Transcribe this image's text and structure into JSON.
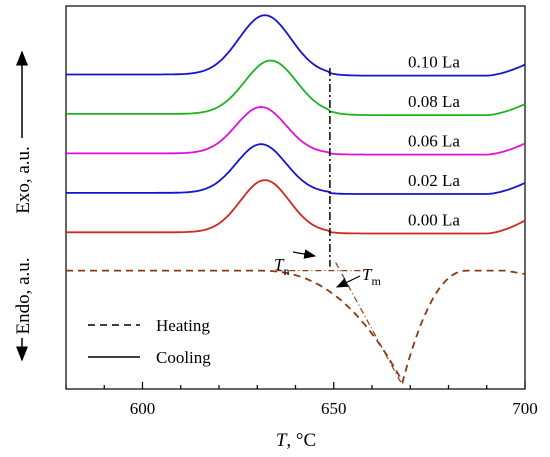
{
  "chart_data": {
    "type": "line",
    "xlabel_italic": "T",
    "xlabel_rest": ", °C",
    "ylabel_exo": "Exo, a.u.",
    "ylabel_endo": "Endo, a.u.",
    "xlim": [
      580,
      700
    ],
    "xticks": [
      {
        "value": 600,
        "label": "600"
      },
      {
        "value": 650,
        "label": "650"
      },
      {
        "value": 700,
        "label": "700"
      }
    ],
    "series": [
      {
        "name": "0.10 La",
        "color": "#1515d0",
        "baseline": 8.9,
        "peak_height": 2.55,
        "peak_x": 632,
        "width": 9.6,
        "tail_slope": 0.012
      },
      {
        "name": "0.08 La",
        "color": "#1fb31f",
        "baseline": 7.2,
        "peak_height": 2.3,
        "peak_x": 633.5,
        "width": 9.6,
        "tail_slope": 0.012
      },
      {
        "name": "0.06 La",
        "color": "#e010d8",
        "baseline": 5.5,
        "peak_height": 2.0,
        "peak_x": 631,
        "width": 9.2,
        "tail_slope": 0.012
      },
      {
        "name": "0.02 La",
        "color": "#1515d0",
        "baseline": 3.8,
        "peak_height": 2.1,
        "peak_x": 631,
        "width": 9.2,
        "tail_slope": 0.012
      },
      {
        "name": "0.00 La",
        "color": "#cc2a22",
        "baseline": 2.1,
        "peak_height": 2.25,
        "peak_x": 632,
        "width": 9.0,
        "tail_slope": 0.014
      }
    ],
    "heating_curve": {
      "color": "#8b3a12",
      "baseline": 0.5,
      "onset_x": 649,
      "min_x": 668,
      "min_value": -4.3,
      "return_x": 685
    },
    "legend": {
      "heating": "Heating",
      "cooling": "Cooling"
    },
    "annotations": {
      "tn_label": "T",
      "tn_sub": "n",
      "tm_label": "T",
      "tm_sub": "m"
    },
    "vertical_marker_x": 649,
    "ylim": [
      -4.6,
      11.9
    ]
  }
}
